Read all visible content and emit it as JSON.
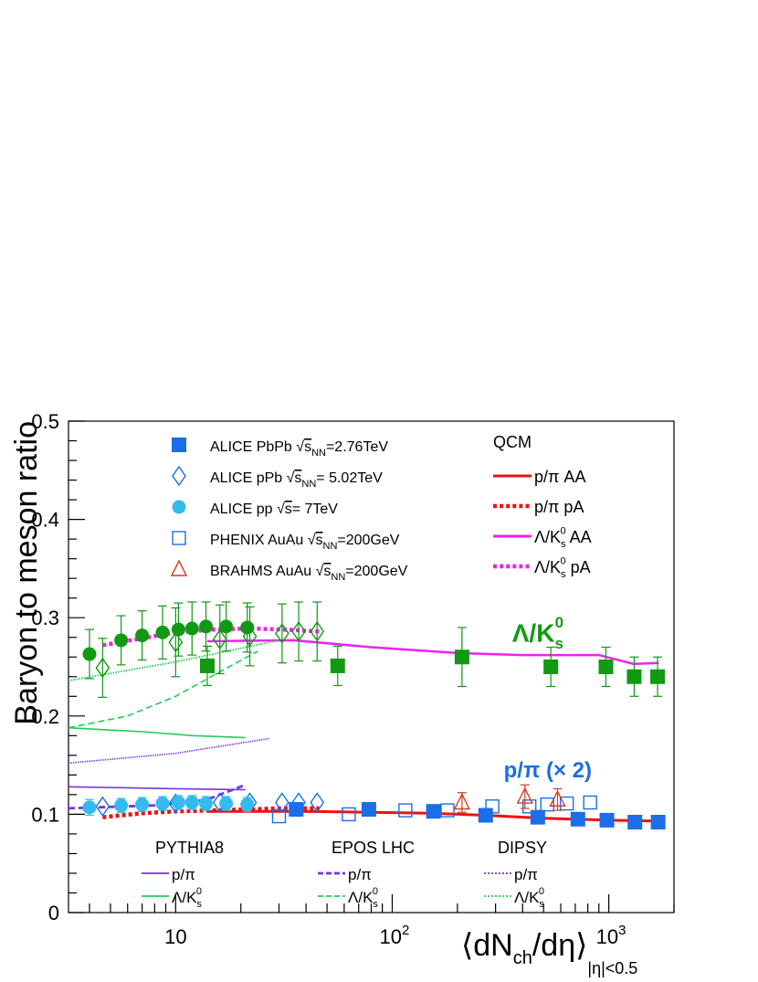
{
  "chart_data": {
    "type": "scatter",
    "title": "",
    "ylabel": "Baryon to meson ratio",
    "xlabel": {
      "main": "⟨dN",
      "sub1": "ch",
      "mid": "/dη⟩",
      "sub2": "|η|<0.5"
    },
    "xscale": "log",
    "xlim": [
      3.2,
      2000
    ],
    "ylim": [
      0,
      0.5
    ],
    "yticks": [
      "0",
      "0.1",
      "0.2",
      "0.3",
      "0.4",
      "0.5"
    ],
    "xticks": [
      {
        "v": 10,
        "base": "10",
        "exp": ""
      },
      {
        "v": 100,
        "base": "10",
        "exp": "2"
      },
      {
        "v": 1000,
        "base": "10",
        "exp": "3"
      }
    ],
    "grid": false,
    "annotations": [
      {
        "id": "ann-lambda",
        "base": "Λ/K",
        "sub": "s",
        "sup": "0",
        "color": "#119911",
        "x": 900,
        "y": 0.285
      },
      {
        "id": "ann-ppi",
        "text": "p/π (× 2)",
        "color": "#1a6ee8",
        "x": 1050,
        "y": 0.147
      }
    ],
    "legend_data": {
      "placement": "top",
      "entries": [
        {
          "label": "ALICE PbPb",
          "root": "s",
          "sub": "NN",
          "after": "=2.76TeV",
          "marker": "square-filled",
          "color": "#1a6ee8"
        },
        {
          "label": "ALICE pPb",
          "root": "s",
          "sub": "NN",
          "after": "= 5.02TeV",
          "marker": "diamond-open",
          "color": "#1a6ee8"
        },
        {
          "label": "ALICE pp",
          "root": "s",
          "sub": "",
          "after": "= 7TeV",
          "marker": "circle-filled",
          "color": "#33bbee"
        },
        {
          "label": "PHENIX AuAu",
          "root": "s",
          "sub": "NN",
          "after": "=200GeV",
          "marker": "square-open",
          "color": "#1a6ee8"
        },
        {
          "label": "BRAHMS AuAu",
          "root": "s",
          "sub": "NN",
          "after": "=200GeV",
          "marker": "triangle-open",
          "color": "#d04020"
        }
      ],
      "qcm_title": "QCM",
      "qcm": [
        {
          "base": "p/π",
          "sub": "",
          "sup": "",
          "suffix": " AA",
          "color": "#ee1111",
          "dash": "solid"
        },
        {
          "base": "p/π",
          "sub": "",
          "sup": "",
          "suffix": " pA",
          "color": "#ee1111",
          "dash": "dotted"
        },
        {
          "base": "Λ/K",
          "sub": "s",
          "sup": "0",
          "suffix": " AA",
          "color": "#ee22ee",
          "dash": "solid"
        },
        {
          "base": "Λ/K",
          "sub": "s",
          "sup": "0",
          "suffix": " pA",
          "color": "#ee22ee",
          "dash": "dotted"
        }
      ],
      "models": [
        {
          "name": "PYTHIA8",
          "style": "solid"
        },
        {
          "name": "EPOS LHC",
          "style": "dashed"
        },
        {
          "name": "DIPSY",
          "style": "dotted"
        }
      ],
      "model_rows": [
        {
          "base": "p/π",
          "sub": "",
          "sup": "",
          "color": "#7733dd"
        },
        {
          "base": "Λ/K",
          "sub": "s",
          "sup": "0",
          "color": "#22cc55"
        }
      ]
    },
    "series": [
      {
        "name": "ALICE PbPb Λ/K0s",
        "marker": "square-filled",
        "color": "#119911",
        "errcolor": "#119911",
        "x": [
          14,
          56,
          210,
          540,
          970,
          1310,
          1680
        ],
        "y": [
          0.251,
          0.251,
          0.26,
          0.25,
          0.25,
          0.24,
          0.24
        ],
        "err": [
          0.02,
          0.02,
          0.03,
          0.02,
          0.02,
          0.02,
          0.02
        ]
      },
      {
        "name": "ALICE pPb Λ/K0s",
        "marker": "diamond-open",
        "color": "#119911",
        "errcolor": "#119911",
        "x": [
          4.6,
          10,
          16,
          22,
          31,
          37,
          45
        ],
        "y": [
          0.249,
          0.275,
          0.278,
          0.281,
          0.284,
          0.286,
          0.286
        ],
        "err": [
          0.03,
          0.035,
          0.035,
          0.03,
          0.03,
          0.03,
          0.03
        ]
      },
      {
        "name": "ALICE pp Λ/K0s",
        "marker": "circle-filled",
        "color": "#119911",
        "errcolor": "#119911",
        "x": [
          4.0,
          5.6,
          7.0,
          8.7,
          10.3,
          11.9,
          13.8,
          17.1,
          21.4
        ],
        "y": [
          0.263,
          0.277,
          0.282,
          0.285,
          0.288,
          0.289,
          0.291,
          0.291,
          0.29
        ],
        "err": [
          0.025,
          0.025,
          0.025,
          0.027,
          0.027,
          0.027,
          0.025,
          0.025,
          0.025
        ]
      },
      {
        "name": "ALICE PbPb p/π",
        "marker": "square-filled",
        "color": "#1a6ee8",
        "errcolor": "#1a6ee8",
        "x": [
          36,
          78,
          155,
          270,
          470,
          720,
          980,
          1320,
          1690
        ],
        "y": [
          0.105,
          0.105,
          0.103,
          0.099,
          0.097,
          0.095,
          0.094,
          0.092,
          0.092
        ],
        "err": [
          0.005,
          0.005,
          0.005,
          0.005,
          0.005,
          0.005,
          0.005,
          0.005,
          0.005
        ]
      },
      {
        "name": "ALICE pPb p/π",
        "marker": "diamond-open",
        "color": "#1a6ee8",
        "errcolor": "#1a6ee8",
        "x": [
          4.6,
          10,
          16,
          22,
          31,
          37,
          45
        ],
        "y": [
          0.108,
          0.111,
          0.112,
          0.112,
          0.112,
          0.112,
          0.112
        ],
        "err": [
          0,
          0,
          0,
          0,
          0,
          0,
          0
        ]
      },
      {
        "name": "ALICE pp p/π",
        "marker": "circle-filled",
        "color": "#33bbee",
        "errcolor": "#33bbee",
        "x": [
          4.0,
          5.6,
          7.0,
          8.7,
          10.3,
          11.9,
          13.8,
          17.1,
          21.4
        ],
        "y": [
          0.107,
          0.109,
          0.11,
          0.111,
          0.112,
          0.112,
          0.111,
          0.111,
          0.11
        ],
        "err": [
          0.008,
          0.007,
          0.007,
          0.007,
          0.007,
          0.007,
          0.007,
          0.007,
          0.007
        ]
      },
      {
        "name": "PHENIX AuAu p/π",
        "marker": "square-open",
        "color": "#1a6ee8",
        "errcolor": "#1a6ee8",
        "x": [
          30,
          63,
          115,
          180,
          290,
          430,
          520,
          640,
          820
        ],
        "y": [
          0.098,
          0.1,
          0.104,
          0.104,
          0.108,
          0.108,
          0.11,
          0.111,
          0.112
        ],
        "err": [
          0,
          0,
          0,
          0,
          0,
          0,
          0,
          0,
          0
        ]
      },
      {
        "name": "BRAHMS AuAu p/π",
        "marker": "triangle-open",
        "color": "#d04020",
        "errcolor": "#d04020",
        "x": [
          210,
          410,
          580
        ],
        "y": [
          0.112,
          0.118,
          0.115
        ],
        "err": [
          0.01,
          0.012,
          0.011
        ]
      }
    ],
    "lines": [
      {
        "name": "QCM p/π AA",
        "color": "#ee1111",
        "dash": "solid",
        "width": 3,
        "x": [
          14,
          40,
          80,
          150,
          270,
          500,
          1000,
          1700
        ],
        "y": [
          0.103,
          0.103,
          0.102,
          0.101,
          0.099,
          0.096,
          0.094,
          0.093
        ]
      },
      {
        "name": "QCM p/π pA",
        "color": "#ee1111",
        "dash": "dotted",
        "width": 4.5,
        "x": [
          4.6,
          7,
          10,
          15,
          22,
          31,
          46
        ],
        "y": [
          0.097,
          0.101,
          0.103,
          0.104,
          0.105,
          0.106,
          0.106
        ]
      },
      {
        "name": "QCM Λ/K0s AA",
        "color": "#ee22ee",
        "dash": "solid",
        "width": 2.5,
        "x": [
          14,
          35,
          80,
          200,
          400,
          900,
          1300,
          1700
        ],
        "y": [
          0.276,
          0.277,
          0.27,
          0.264,
          0.262,
          0.262,
          0.253,
          0.254
        ]
      },
      {
        "name": "QCM Λ/K0s pA",
        "color": "#ee22ee",
        "dash": "dotted",
        "width": 4.5,
        "x": [
          4.6,
          7,
          10,
          15,
          22,
          31,
          46
        ],
        "y": [
          0.272,
          0.279,
          0.285,
          0.288,
          0.289,
          0.288,
          0.286
        ]
      },
      {
        "name": "PYTHIA8 p/π",
        "color": "#7733dd",
        "dash": "solid",
        "width": 1.6,
        "x": [
          3.2,
          10,
          21
        ],
        "y": [
          0.128,
          0.126,
          0.125
        ]
      },
      {
        "name": "PYTHIA8 Λ/K0s",
        "color": "#22cc55",
        "dash": "solid",
        "width": 1.6,
        "x": [
          3.2,
          7,
          12,
          21
        ],
        "y": [
          0.188,
          0.184,
          0.18,
          0.178
        ]
      },
      {
        "name": "EPOS LHC p/π",
        "color": "#7733dd",
        "dash": "dashed",
        "width": 2.8,
        "x": [
          3.2,
          8,
          14,
          21
        ],
        "y": [
          0.106,
          0.109,
          0.115,
          0.13
        ]
      },
      {
        "name": "EPOS LHC Λ/K0s",
        "color": "#22cc55",
        "dash": "dashed",
        "width": 1.6,
        "x": [
          3.2,
          6,
          10,
          16,
          24
        ],
        "y": [
          0.188,
          0.2,
          0.22,
          0.245,
          0.266
        ]
      },
      {
        "name": "DIPSY p/π",
        "color": "#7733dd",
        "dash": "dotted",
        "width": 1.6,
        "x": [
          3.2,
          10,
          27
        ],
        "y": [
          0.152,
          0.162,
          0.177
        ]
      },
      {
        "name": "DIPSY Λ/K0s",
        "color": "#22cc55",
        "dash": "dotted",
        "width": 1.8,
        "x": [
          3.2,
          10,
          30
        ],
        "y": [
          0.236,
          0.255,
          0.277
        ]
      }
    ]
  }
}
